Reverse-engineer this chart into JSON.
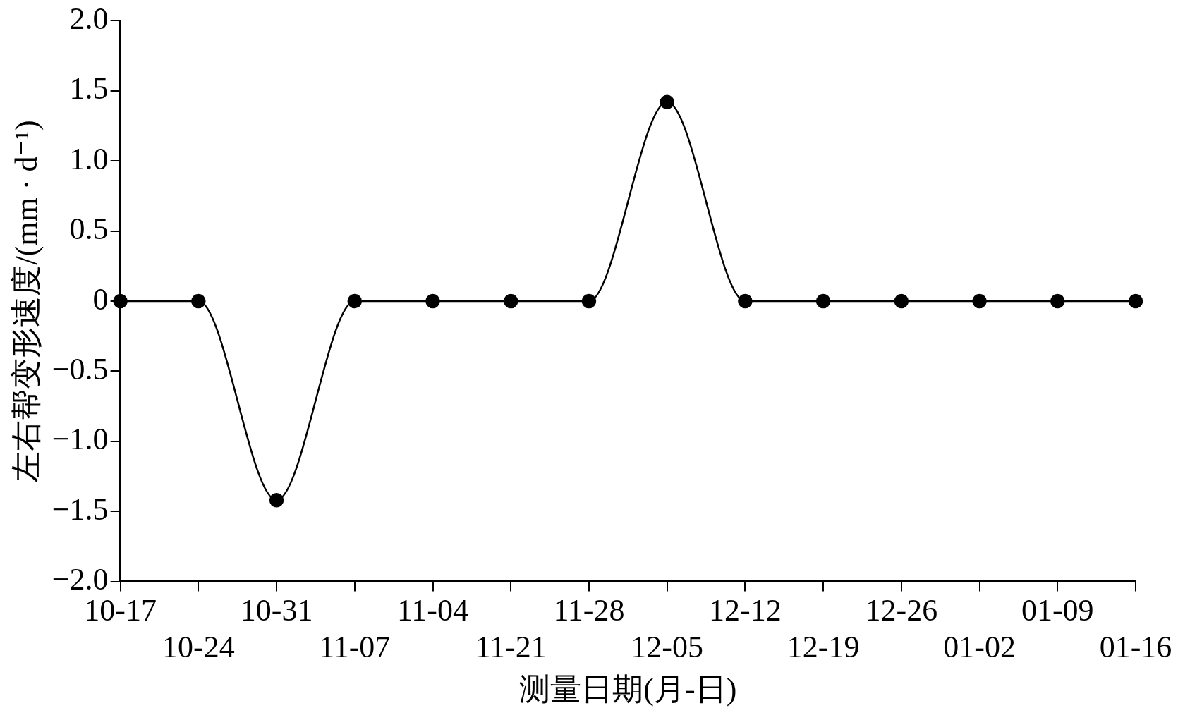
{
  "chart_data": {
    "type": "line",
    "xlabel": "测量日期(月-日)",
    "ylabel": "左右帮变形速度/(mm · d⁻¹)",
    "categories": [
      "10-17",
      "10-24",
      "10-31",
      "11-07",
      "11-04",
      "11-21",
      "11-28",
      "12-05",
      "12-12",
      "12-19",
      "12-26",
      "01-02",
      "01-09",
      "01-16"
    ],
    "series": [
      {
        "color": "#000000",
        "values": [
          0,
          0,
          -1.42,
          0,
          0,
          0,
          0,
          1.42,
          0,
          0,
          0,
          0,
          0,
          0
        ]
      }
    ],
    "ylim": [
      -2,
      2
    ],
    "yticks": [
      {
        "value": -2,
        "label": "−2.0"
      },
      {
        "value": -1.5,
        "label": "−1.5"
      },
      {
        "value": -1,
        "label": "−1.0"
      },
      {
        "value": -0.5,
        "label": "−0.5"
      },
      {
        "value": 0,
        "label": "0"
      },
      {
        "value": 0.5,
        "label": "0.5"
      },
      {
        "value": 1,
        "label": "1.0"
      },
      {
        "value": 1.5,
        "label": "1.5"
      },
      {
        "value": 2,
        "label": "2.0"
      }
    ],
    "marker": "circle",
    "line_style": "solid",
    "grid": false,
    "legend": false
  }
}
